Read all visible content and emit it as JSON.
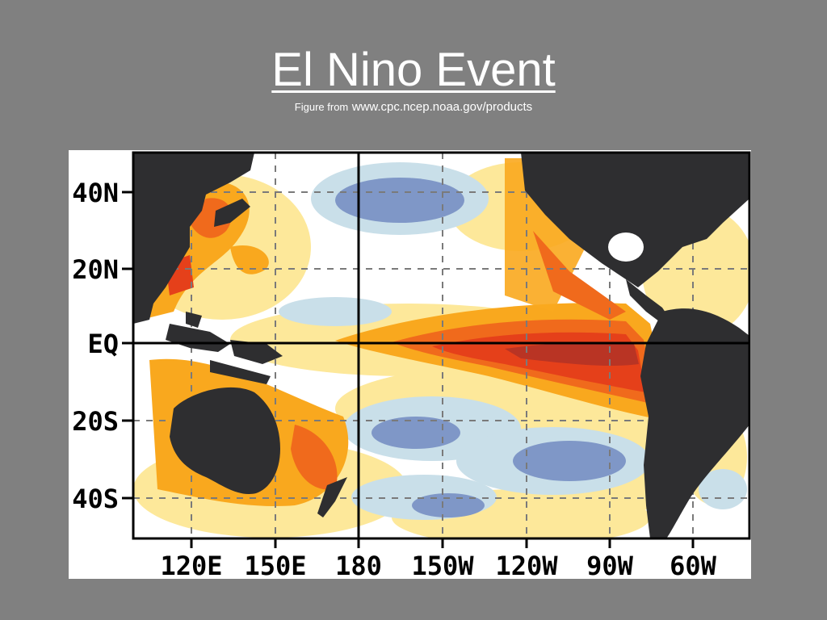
{
  "slide": {
    "title": "El Nino Event",
    "credit_prefix": "Figure from",
    "credit_url": "www.cpc.ncep.noaa.gov/products"
  },
  "map": {
    "lat_labels": [
      "40N",
      "20N",
      "EQ",
      "20S",
      "40S"
    ],
    "lon_labels": [
      "120E",
      "150E",
      "180",
      "150W",
      "120W",
      "90W",
      "60W"
    ],
    "colors": {
      "land": "#2e2e30",
      "ocean_neutral": "#ffffff",
      "warm_1": "#fde89a",
      "warm_2": "#f9a81e",
      "warm_3": "#f06a1c",
      "warm_4": "#e5401a",
      "warm_5": "#b93424",
      "cool_1": "#c9dfe9",
      "cool_2": "#7f97c7",
      "grid": "#7a7a7a",
      "frame": "#000000"
    }
  }
}
